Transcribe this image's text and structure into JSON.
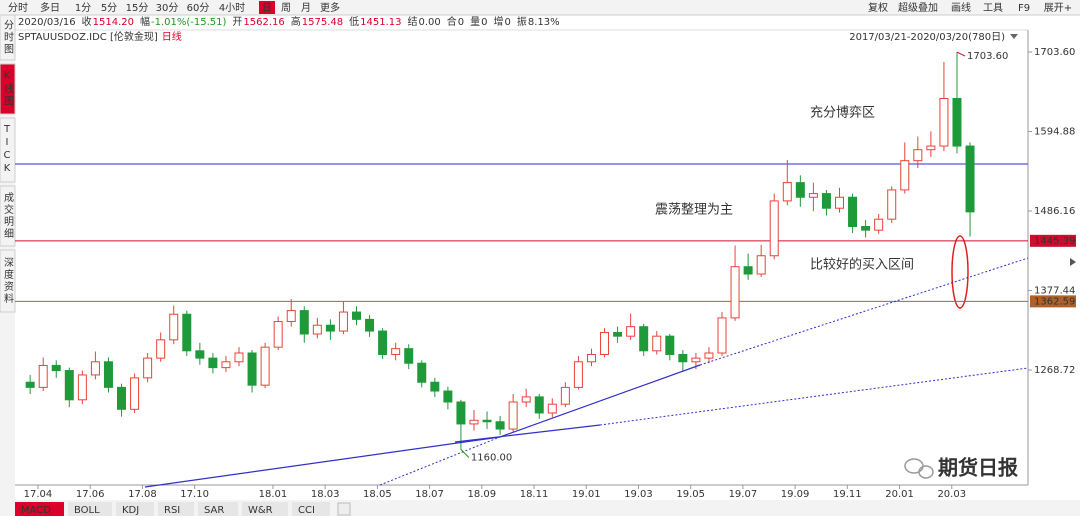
{
  "toolbar": {
    "periods": [
      "分时",
      "多日",
      "1分",
      "5分",
      "15分",
      "30分",
      "60分",
      "4小时",
      "日",
      "周",
      "月",
      "更多"
    ],
    "active": "日",
    "tools": [
      "复权",
      "超级叠加",
      "画线",
      "工具",
      "F9",
      "展开+"
    ]
  },
  "info": {
    "date": "2020/03/16",
    "fields": [
      {
        "label": "收",
        "value": "1514.20",
        "color": "#d9002a"
      },
      {
        "label": "幅",
        "value": "-1.01%(-15.51)",
        "color": "#1a9a1a"
      },
      {
        "label": "开",
        "value": "1562.16",
        "color": "#d9002a"
      },
      {
        "label": "高",
        "value": "1575.48",
        "color": "#d9002a"
      },
      {
        "label": "低",
        "value": "1451.13",
        "color": "#d9002a"
      },
      {
        "label": "结",
        "value": "0.00",
        "color": "#333333"
      },
      {
        "label": "合",
        "value": "0",
        "color": "#333333"
      },
      {
        "label": "量",
        "value": "0",
        "color": "#333333"
      },
      {
        "label": "增",
        "value": "0",
        "color": "#333333"
      },
      {
        "label": "振",
        "value": "8.13%",
        "color": "#333333"
      }
    ]
  },
  "symbol": "SPTAUUSDOZ.IDC [伦敦金现]",
  "period": "日线",
  "range": "2017/03/21-2020/03/20(780日)",
  "sidebar": [
    "分时图",
    "K线图",
    "TICK",
    "成交明细",
    "深度资料"
  ],
  "sidebar_active": "K线图",
  "indicators": [
    "MACD",
    "BOLL",
    "KDJ",
    "RSI",
    "SAR",
    "W&R",
    "CCI"
  ],
  "indicator_active": "MACD",
  "watermark": "期货日报",
  "chart_data": {
    "type": "candlestick",
    "up_color": "#e8433a",
    "down_color": "#1f9a3a",
    "x": [
      2.7,
      3.2,
      3.7,
      4.2,
      4.7,
      5.2,
      5.7,
      6.2,
      6.7,
      7.2,
      7.7,
      8.2,
      8.7,
      9.2,
      9.7,
      10.2,
      10.7,
      11.2,
      11.7,
      12.2,
      12.7,
      13.2,
      13.7,
      14.2,
      14.7,
      15.2,
      15.7,
      16.2,
      16.7,
      17.2,
      17.7,
      18.2,
      18.7,
      19.2,
      19.7,
      20.2,
      20.7,
      21.2,
      21.7,
      22.2,
      22.7,
      23.2,
      23.7,
      24.2,
      24.7,
      25.2,
      25.7,
      26.2,
      26.7,
      27.2,
      27.7,
      28.2,
      28.7,
      29.2,
      29.7,
      30.2,
      30.7,
      31.2,
      31.7,
      32.2,
      32.7,
      33.2,
      33.7,
      34.2,
      34.7,
      35.2,
      35.7,
      36.2,
      36.7,
      37.2,
      37.7,
      38.2,
      38.7
    ],
    "open": [
      1252,
      1245,
      1275,
      1268,
      1228,
      1262,
      1280,
      1245,
      1215,
      1258,
      1285,
      1310,
      1345,
      1295,
      1285,
      1272,
      1280,
      1292,
      1248,
      1300,
      1335,
      1350,
      1318,
      1330,
      1322,
      1348,
      1338,
      1322,
      1290,
      1298,
      1278,
      1252,
      1240,
      1225,
      1195,
      1200,
      1198,
      1188,
      1225,
      1232,
      1210,
      1222,
      1245,
      1280,
      1290,
      1320,
      1315,
      1328,
      1295,
      1315,
      1290,
      1280,
      1285,
      1292,
      1340,
      1410,
      1400,
      1425,
      1500,
      1525,
      1505,
      1510,
      1490,
      1505,
      1465,
      1460,
      1475,
      1515,
      1555,
      1570,
      1575,
      1640,
      1575
    ],
    "high": [
      1262,
      1286,
      1282,
      1272,
      1268,
      1294,
      1286,
      1250,
      1264,
      1292,
      1320,
      1357,
      1350,
      1306,
      1292,
      1288,
      1300,
      1296,
      1306,
      1342,
      1366,
      1356,
      1340,
      1338,
      1362,
      1356,
      1344,
      1326,
      1306,
      1304,
      1282,
      1258,
      1246,
      1228,
      1214,
      1212,
      1206,
      1236,
      1243,
      1236,
      1230,
      1252,
      1288,
      1298,
      1326,
      1328,
      1346,
      1332,
      1322,
      1318,
      1296,
      1292,
      1300,
      1348,
      1439,
      1428,
      1440,
      1510,
      1556,
      1535,
      1525,
      1515,
      1518,
      1510,
      1474,
      1482,
      1520,
      1580,
      1588,
      1595,
      1690,
      1703.6,
      1580
    ],
    "low": [
      1236,
      1240,
      1258,
      1218,
      1222,
      1256,
      1238,
      1205,
      1210,
      1252,
      1280,
      1304,
      1288,
      1276,
      1264,
      1266,
      1274,
      1238,
      1244,
      1296,
      1328,
      1306,
      1312,
      1310,
      1318,
      1330,
      1314,
      1284,
      1282,
      1270,
      1245,
      1232,
      1215,
      1160,
      1186,
      1188,
      1180,
      1184,
      1218,
      1202,
      1204,
      1218,
      1242,
      1274,
      1286,
      1306,
      1310,
      1288,
      1290,
      1282,
      1268,
      1270,
      1278,
      1288,
      1336,
      1392,
      1396,
      1420,
      1494,
      1492,
      1486,
      1480,
      1484,
      1456,
      1450,
      1455,
      1470,
      1510,
      1545,
      1560,
      1568,
      1565,
      1451.13
    ],
    "close": [
      1245,
      1275,
      1268,
      1228,
      1262,
      1280,
      1245,
      1215,
      1258,
      1285,
      1310,
      1345,
      1295,
      1285,
      1272,
      1280,
      1292,
      1248,
      1300,
      1335,
      1350,
      1318,
      1330,
      1322,
      1348,
      1338,
      1322,
      1290,
      1298,
      1278,
      1252,
      1240,
      1225,
      1195,
      1200,
      1198,
      1188,
      1225,
      1232,
      1210,
      1222,
      1245,
      1280,
      1290,
      1320,
      1315,
      1328,
      1295,
      1315,
      1290,
      1280,
      1285,
      1292,
      1340,
      1410,
      1400,
      1425,
      1500,
      1525,
      1505,
      1510,
      1490,
      1505,
      1465,
      1460,
      1475,
      1515,
      1555,
      1570,
      1575,
      1640,
      1575,
      1485
    ],
    "extremes": {
      "high": {
        "index": 71,
        "label": "1703.60"
      },
      "low": {
        "index": 33,
        "label": "1160.00"
      }
    },
    "xlim": [
      2.12,
      40.92
    ],
    "xticks": [
      {
        "value": 3,
        "label": "17.04"
      },
      {
        "value": 5,
        "label": "17.06"
      },
      {
        "value": 7,
        "label": "17.08"
      },
      {
        "value": 9,
        "label": "17.10"
      },
      {
        "value": 12,
        "label": "18.01"
      },
      {
        "value": 14,
        "label": "18.03"
      },
      {
        "value": 16,
        "label": "18.05"
      },
      {
        "value": 18,
        "label": "18.07"
      },
      {
        "value": 20,
        "label": "18.09"
      },
      {
        "value": 22,
        "label": "18.11"
      },
      {
        "value": 24,
        "label": "19.01"
      },
      {
        "value": 26,
        "label": "19.03"
      },
      {
        "value": 28,
        "label": "19.05"
      },
      {
        "value": 30,
        "label": "19.07"
      },
      {
        "value": 32,
        "label": "19.09"
      },
      {
        "value": 34,
        "label": "19.11"
      },
      {
        "value": 36,
        "label": "20.01"
      },
      {
        "value": 38,
        "label": "20.03"
      }
    ],
    "ylim": [
      1111.5,
      1733.7
    ],
    "yticks": [
      {
        "value": 1703.6,
        "label": "1703.60"
      },
      {
        "value": 1594.88,
        "label": "1594.88"
      },
      {
        "value": 1486.16,
        "label": "1486.16"
      },
      {
        "value": 1377.44,
        "label": "1377.44"
      },
      {
        "value": 1268.72,
        "label": "1268.72"
      }
    ],
    "hlines": [
      {
        "value": 1550.4,
        "color": "#2b2bd6"
      },
      {
        "value": 1445.39,
        "label": "1445.39",
        "color": "#c8102e"
      },
      {
        "value": 1362.59,
        "label": "1362.59",
        "color": "#b0602a"
      }
    ],
    "annotations": [
      "充分博弈区",
      "震荡整理为主",
      "比较好的买入区间"
    ]
  }
}
